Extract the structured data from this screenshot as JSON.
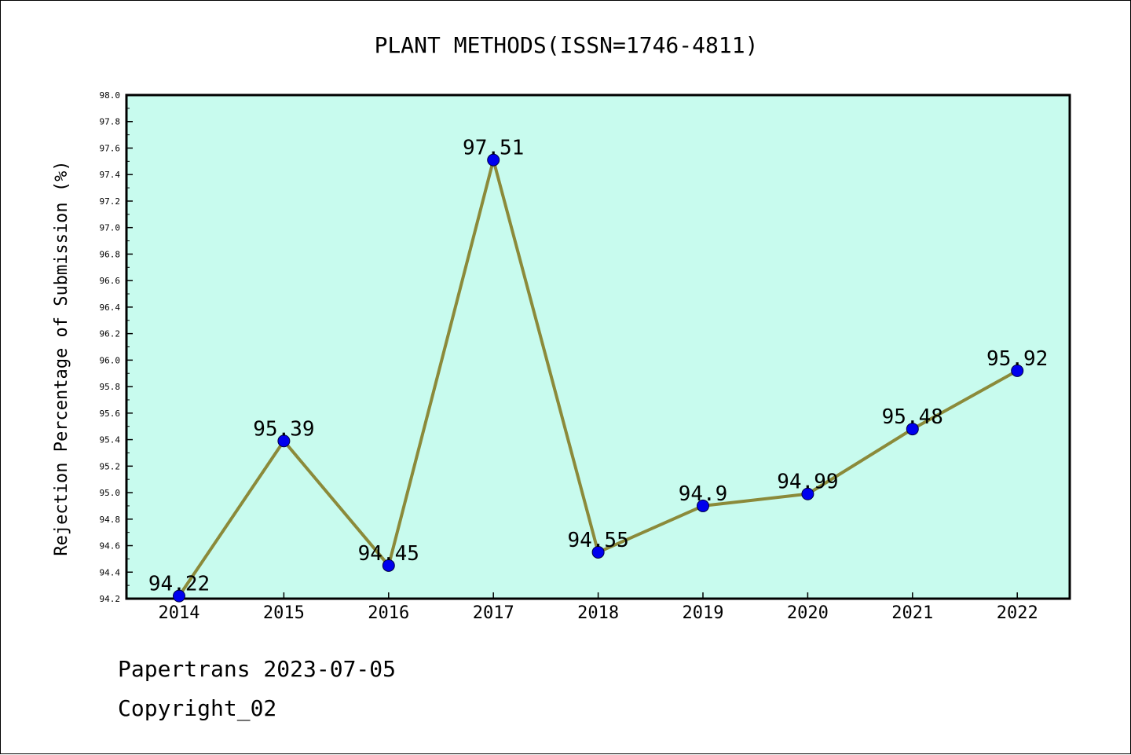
{
  "chart_data": {
    "type": "line",
    "title": "PLANT METHODS(ISSN=1746-4811)",
    "xlabel": "",
    "ylabel": "Rejection Percentage of Submission (%)",
    "categories": [
      "2014",
      "2015",
      "2016",
      "2017",
      "2018",
      "2019",
      "2020",
      "2021",
      "2022"
    ],
    "values": [
      94.22,
      95.39,
      94.45,
      97.51,
      94.55,
      94.9,
      94.99,
      95.48,
      95.92
    ],
    "data_labels": [
      "94.22",
      "95.39",
      "94.45",
      "97.51",
      "94.55",
      "94.9",
      "94.99",
      "95.48",
      "95.92"
    ],
    "ylim": [
      94.2,
      98.0
    ],
    "yticks": [
      "94.2",
      "94.4",
      "94.6",
      "94.8",
      "95.0",
      "95.2",
      "95.4",
      "95.6",
      "95.8",
      "96.0",
      "96.2",
      "96.4",
      "96.6",
      "96.8",
      "97.0",
      "97.2",
      "97.4",
      "97.6",
      "97.8",
      "98.0"
    ],
    "grid": false,
    "colors": {
      "plot_background": "#c8fbee",
      "line": "#8b8a3a",
      "marker": "#0000ee"
    }
  },
  "footer": {
    "line1": "Papertrans 2023-07-05",
    "line2": "Copyright_02"
  }
}
